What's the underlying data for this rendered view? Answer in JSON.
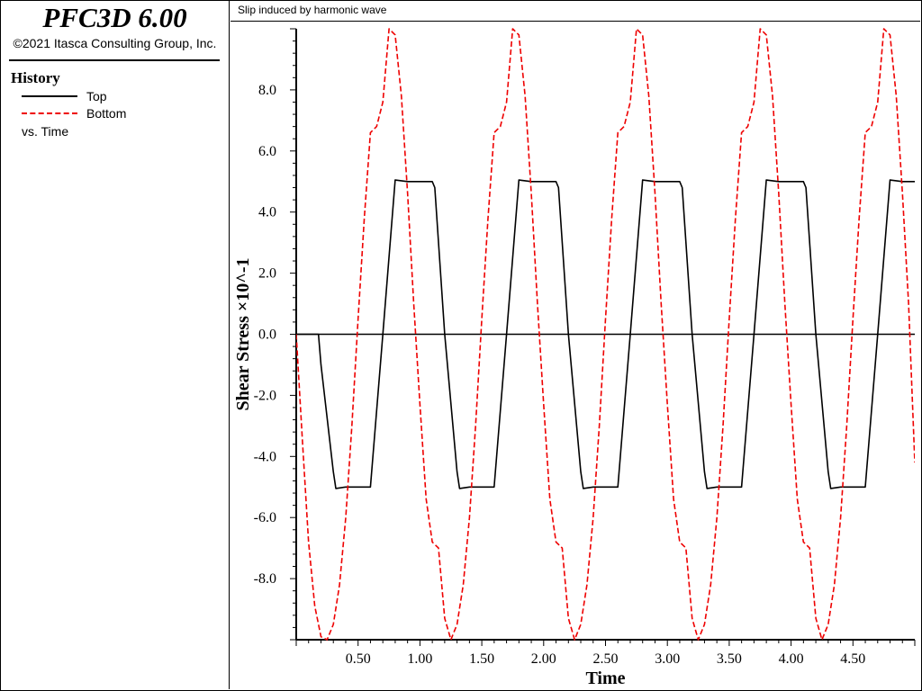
{
  "app": {
    "title": "PFC3D 6.00",
    "copyright": "©2021 Itasca Consulting Group, Inc."
  },
  "legend": {
    "heading": "History",
    "entries": [
      {
        "label": "Top",
        "color": "#000000",
        "style": "solid"
      },
      {
        "label": "Bottom",
        "color": "#ee0000",
        "style": "dashed"
      }
    ],
    "vs_label": "vs. Time"
  },
  "plot": {
    "title": "Slip induced by harmonic wave"
  },
  "chart_data": {
    "type": "line",
    "title": "Slip induced by harmonic wave",
    "xlabel": "Time",
    "ylabel": "Shear Stress ×10^-1",
    "xlim": [
      0.0,
      5.0
    ],
    "ylim": [
      -10.0,
      10.0
    ],
    "x_ticks": [
      "0.50",
      "1.00",
      "1.50",
      "2.00",
      "2.50",
      "3.00",
      "3.50",
      "4.00",
      "4.50"
    ],
    "y_ticks": [
      "8.0",
      "6.0",
      "4.0",
      "2.0",
      "0.0",
      "-2.0",
      "-4.0",
      "-6.0",
      "-8.0"
    ],
    "zero_line": true,
    "grid": false,
    "legend_position": "left-panel",
    "series": [
      {
        "name": "Top",
        "color": "#000000",
        "style": "solid",
        "x": [
          0.0,
          0.1,
          0.18,
          0.2,
          0.3,
          0.32,
          0.4,
          0.5,
          0.55,
          0.6,
          0.7,
          0.8,
          0.9,
          1.0,
          1.05,
          1.1,
          1.12,
          1.2,
          1.3,
          1.32,
          1.4,
          1.5,
          1.55,
          1.6,
          1.7,
          1.8,
          1.9,
          2.0,
          2.05,
          2.1,
          2.12,
          2.2,
          2.3,
          2.32,
          2.4,
          2.5,
          2.55,
          2.6,
          2.7,
          2.8,
          2.9,
          3.0,
          3.05,
          3.1,
          3.12,
          3.2,
          3.3,
          3.32,
          3.4,
          3.5,
          3.55,
          3.6,
          3.7,
          3.8,
          3.9,
          4.0,
          4.05,
          4.1,
          4.12,
          4.2,
          4.3,
          4.32,
          4.4,
          4.5,
          4.55,
          4.6,
          4.7,
          4.8,
          4.9,
          5.0
        ],
        "y": [
          0.0,
          0.0,
          0.0,
          -1.0,
          -4.5,
          -5.05,
          -5.0,
          -5.0,
          -5.0,
          -5.0,
          0.0,
          5.05,
          5.0,
          5.0,
          5.0,
          5.0,
          4.8,
          0.0,
          -4.5,
          -5.05,
          -5.0,
          -5.0,
          -5.0,
          -5.0,
          0.0,
          5.05,
          5.0,
          5.0,
          5.0,
          5.0,
          4.8,
          0.0,
          -4.5,
          -5.05,
          -5.0,
          -5.0,
          -5.0,
          -5.0,
          0.0,
          5.05,
          5.0,
          5.0,
          5.0,
          5.0,
          4.8,
          0.0,
          -4.5,
          -5.05,
          -5.0,
          -5.0,
          -5.0,
          -5.0,
          0.0,
          5.05,
          5.0,
          5.0,
          5.0,
          5.0,
          4.8,
          0.0,
          -4.5,
          -5.05,
          -5.0,
          -5.0,
          -5.0,
          -5.0,
          0.0,
          5.05,
          5.0,
          5.0
        ]
      },
      {
        "name": "Bottom",
        "color": "#ee0000",
        "style": "dashed",
        "x": [
          0.0,
          0.05,
          0.1,
          0.15,
          0.2,
          0.25,
          0.3,
          0.35,
          0.4,
          0.45,
          0.5,
          0.55,
          0.6,
          0.65,
          0.7,
          0.75,
          0.8,
          0.85,
          0.9,
          0.95,
          1.0,
          1.05,
          1.1,
          1.15,
          1.2,
          1.25,
          1.3,
          1.35,
          1.4,
          1.45,
          1.5,
          1.55,
          1.6,
          1.65,
          1.7,
          1.75,
          1.8,
          1.85,
          1.9,
          1.95,
          2.0,
          2.05,
          2.1,
          2.15,
          2.2,
          2.25,
          2.3,
          2.35,
          2.4,
          2.45,
          2.5,
          2.55,
          2.6,
          2.65,
          2.7,
          2.75,
          2.8,
          2.85,
          2.9,
          2.95,
          3.0,
          3.05,
          3.1,
          3.15,
          3.2,
          3.25,
          3.3,
          3.35,
          3.4,
          3.45,
          3.5,
          3.55,
          3.6,
          3.65,
          3.7,
          3.75,
          3.8,
          3.85,
          3.9,
          3.95,
          4.0,
          4.05,
          4.1,
          4.15,
          4.2,
          4.25,
          4.3,
          4.35,
          4.4,
          4.45,
          4.5,
          4.55,
          4.6,
          4.65,
          4.7,
          4.75,
          4.8,
          4.85,
          4.9,
          4.95,
          5.0
        ],
        "y": [
          0.0,
          -3.5,
          -6.8,
          -8.9,
          -9.9,
          -10.0,
          -9.5,
          -8.2,
          -6.0,
          -3.0,
          0.5,
          3.8,
          6.6,
          6.8,
          7.6,
          10.0,
          9.8,
          7.8,
          4.6,
          1.0,
          -2.3,
          -5.4,
          -6.8,
          -7.0,
          -9.3,
          -10.0,
          -9.5,
          -8.2,
          -6.0,
          -3.0,
          0.5,
          3.8,
          6.6,
          6.8,
          7.6,
          10.0,
          9.8,
          7.8,
          4.6,
          1.0,
          -2.3,
          -5.4,
          -6.8,
          -7.0,
          -9.3,
          -10.0,
          -9.5,
          -8.2,
          -6.0,
          -3.0,
          0.5,
          3.8,
          6.6,
          6.8,
          7.6,
          10.0,
          9.8,
          7.8,
          4.6,
          1.0,
          -2.3,
          -5.4,
          -6.8,
          -7.0,
          -9.3,
          -10.0,
          -9.5,
          -8.2,
          -6.0,
          -3.0,
          0.5,
          3.8,
          6.6,
          6.8,
          7.6,
          10.0,
          9.8,
          7.8,
          4.6,
          1.0,
          -2.3,
          -5.4,
          -6.8,
          -7.0,
          -9.3,
          -10.0,
          -9.5,
          -8.2,
          -6.0,
          -3.0,
          0.5,
          3.8,
          6.6,
          6.8,
          7.6,
          10.0,
          9.8,
          7.8,
          4.6,
          1.0,
          -4.2
        ]
      }
    ]
  }
}
